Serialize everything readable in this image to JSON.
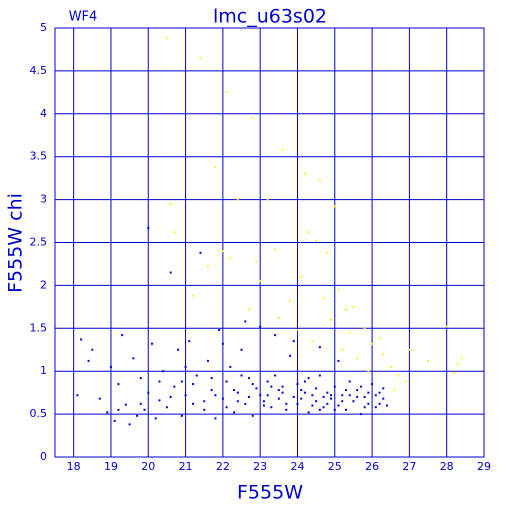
{
  "chart_data": {
    "type": "scatter",
    "title": "lmc_u63s02",
    "subtitle": "WF4",
    "x_label": "F555W",
    "y_label": "F555W chi",
    "xlim": [
      17.5,
      29
    ],
    "ylim": [
      0,
      5
    ],
    "xticks": [
      18,
      19,
      20,
      21,
      22,
      23,
      24,
      25,
      26,
      27,
      28,
      29
    ],
    "yticks": [
      0,
      0.5,
      1,
      1.5,
      2,
      2.5,
      3,
      3.5,
      4,
      4.5,
      5
    ],
    "grid": true,
    "axis_color": "#0000cc",
    "series": [
      {
        "color": "#0000dd",
        "x": [
          18.1,
          18.2,
          18.4,
          18.5,
          18.7,
          18.9,
          19.0,
          19.1,
          19.2,
          19.3,
          19.4,
          19.5,
          19.6,
          19.7,
          19.8,
          19.9,
          20.0,
          20.1,
          20.2,
          20.3,
          20.4,
          20.5,
          20.6,
          20.0,
          20.7,
          20.8,
          20.9,
          21.0,
          21.1,
          21.2,
          21.3,
          21.4,
          21.5,
          21.6,
          21.7,
          21.8,
          21.9,
          22.0,
          22.1,
          22.2,
          22.3,
          22.4,
          22.5,
          22.6,
          22.7,
          22.8,
          22.9,
          23.0,
          23.1,
          23.2,
          23.3,
          23.4,
          23.5,
          23.6,
          23.7,
          23.8,
          23.9,
          24.0,
          24.1,
          24.2,
          24.3,
          24.4,
          24.5,
          24.6,
          24.7,
          24.8,
          24.9,
          25.0,
          25.1,
          25.2,
          25.3,
          25.4,
          25.5,
          25.6,
          25.7,
          25.8,
          25.9,
          26.0,
          26.1,
          26.2,
          26.3,
          26.4,
          21.2,
          21.7,
          22.3,
          22.8,
          23.2,
          23.6,
          24.1,
          24.5,
          24.9,
          25.3,
          25.7,
          26.1,
          22.0,
          23.4,
          24.6,
          25.1,
          22.6,
          23.9,
          21.5,
          22.1,
          22.7,
          23.1,
          23.7,
          24.2,
          24.7,
          25.2,
          25.6,
          26.2,
          20.6,
          20.9,
          21.8,
          22.4,
          23.0,
          23.5,
          24.0,
          24.4,
          24.8,
          25.4,
          25.9,
          26.3,
          19.2,
          19.8,
          20.3,
          21.0,
          22.5,
          24.3,
          25.0,
          25.8,
          23.3,
          24.6
        ],
        "values": [
          0.72,
          1.37,
          1.12,
          1.25,
          0.68,
          0.52,
          1.05,
          0.42,
          0.85,
          1.42,
          0.61,
          0.38,
          1.15,
          0.48,
          0.92,
          0.55,
          0.75,
          1.32,
          0.45,
          0.66,
          1.0,
          0.58,
          2.15,
          2.67,
          0.82,
          1.25,
          0.48,
          0.72,
          1.35,
          0.62,
          0.95,
          2.38,
          0.55,
          1.12,
          0.78,
          0.45,
          1.48,
          0.68,
          0.88,
          1.05,
          0.52,
          0.75,
          1.25,
          0.62,
          0.92,
          0.48,
          0.8,
          1.52,
          0.65,
          0.72,
          0.58,
          0.95,
          0.68,
          0.82,
          0.55,
          1.18,
          0.7,
          0.62,
          0.78,
          0.88,
          0.52,
          0.72,
          0.65,
          0.95,
          0.58,
          0.75,
          0.68,
          0.82,
          0.6,
          0.72,
          0.55,
          0.88,
          0.65,
          0.78,
          0.5,
          0.7,
          0.62,
          0.85,
          0.58,
          0.75,
          0.68,
          0.6,
          0.85,
          0.92,
          0.78,
          0.85,
          0.88,
          0.75,
          0.68,
          0.8,
          0.72,
          0.78,
          0.82,
          0.72,
          1.32,
          1.42,
          1.28,
          1.12,
          1.58,
          1.35,
          0.65,
          0.58,
          0.7,
          0.6,
          0.62,
          0.75,
          0.7,
          0.65,
          0.7,
          0.62,
          0.7,
          0.88,
          0.72,
          0.65,
          0.72,
          0.78,
          0.85,
          0.6,
          0.62,
          0.72,
          0.75,
          0.8,
          0.55,
          0.62,
          0.88,
          1.05,
          0.95,
          0.92,
          0.55,
          0.58,
          0.82,
          0.55
        ]
      },
      {
        "color": "#ffee22",
        "x": [
          20.5,
          21.4,
          22.1,
          22.8,
          23.6,
          21.8,
          22.4,
          23.2,
          24.2,
          24.6,
          25.0,
          20.6,
          20.7,
          22.2,
          23.4,
          22.9,
          24.3,
          24.5,
          24.8,
          21.6,
          22.0,
          25.1,
          25.3,
          24.7,
          23.8,
          24.9,
          25.4,
          25.8,
          26.0,
          26.3,
          26.5,
          26.7,
          26.9,
          27.5,
          28.0,
          28.3,
          28.4,
          25.6,
          25.2,
          24.4,
          24.0,
          23.5,
          22.7,
          21.2,
          25.9,
          26.2,
          26.6,
          27.0,
          28.2,
          23.0,
          24.1,
          25.5
        ],
        "values": [
          4.88,
          4.65,
          4.25,
          3.95,
          3.58,
          3.38,
          3.0,
          3.0,
          3.3,
          3.22,
          2.92,
          2.95,
          2.62,
          2.32,
          2.42,
          2.28,
          2.62,
          2.52,
          2.38,
          2.22,
          2.4,
          1.95,
          1.72,
          1.85,
          1.82,
          1.6,
          1.45,
          1.5,
          1.32,
          1.2,
          1.05,
          0.95,
          0.88,
          1.12,
          1.52,
          1.08,
          1.15,
          1.15,
          1.25,
          1.35,
          1.48,
          1.62,
          1.72,
          1.88,
          1.0,
          1.38,
          0.78,
          1.25,
          0.98,
          2.05,
          2.1,
          1.75
        ]
      }
    ]
  }
}
